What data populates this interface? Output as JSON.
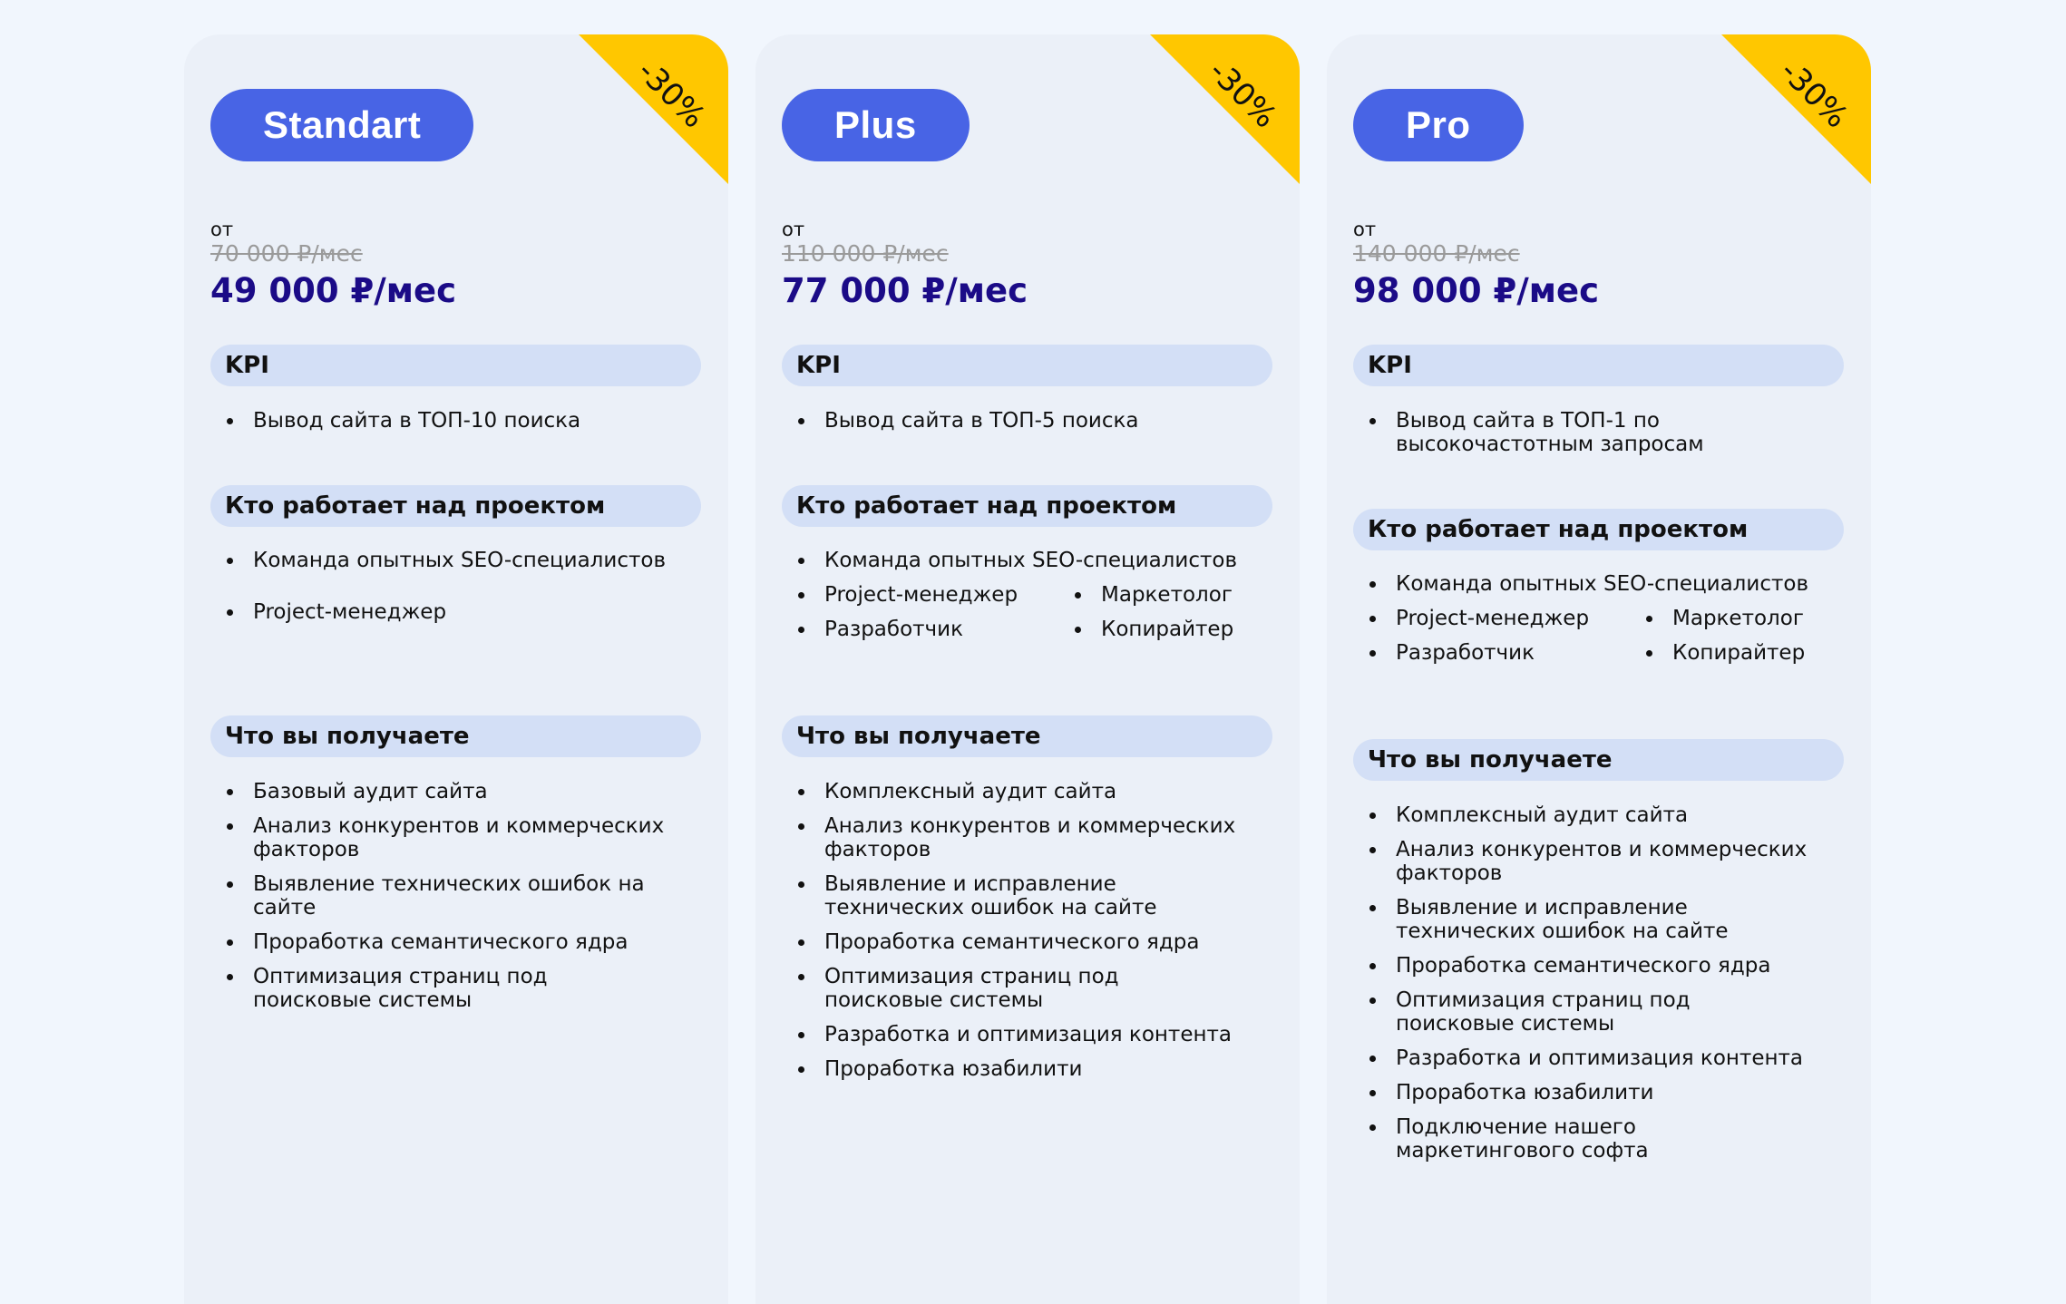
{
  "colors": {
    "background": "#f1f6fd",
    "card": "#ebf0f8",
    "plan_pill": "#4864e5",
    "section_bar": "#d3dff6",
    "price": "#1b0b87",
    "discount_ribbon": "#ffc700",
    "old_price": "#9a9a9a"
  },
  "plans": [
    {
      "name": "Standart",
      "discount": "-30%",
      "from": "от",
      "old_price": "70 000 ₽/мес",
      "price": "49 000 ₽/мес",
      "kpi_title": "KPI",
      "kpi": [
        "Вывод сайта в ТОП-10 поиска"
      ],
      "team_title": "Кто работает над проектом",
      "team": [
        "Команда опытных SEO-специалистов",
        "Project-менеджер"
      ],
      "get_title": "Что вы получаете",
      "get": [
        "Базовый аудит сайта",
        "Анализ конкурентов и коммерческих факторов",
        "Выявление технических ошибок на сайте",
        "Проработка семантического ядра",
        "Оптимизация страниц под поисковые системы"
      ]
    },
    {
      "name": "Plus",
      "discount": "-30%",
      "from": "от",
      "old_price": "110 000 ₽/мес",
      "price": "77 000 ₽/мес",
      "kpi_title": "KPI",
      "kpi": [
        "Вывод сайта в ТОП-5 поиска"
      ],
      "team_title": "Кто работает над проектом",
      "team": [
        "Команда опытных SEO-специалистов",
        "Project-менеджер",
        "Маркетолог",
        "Разработчик",
        "Копирайтер"
      ],
      "get_title": "Что вы получаете",
      "get": [
        "Комплексный аудит сайта",
        "Анализ конкурентов и коммерческих факторов",
        "Выявление и исправление технических ошибок на сайте",
        "Проработка семантического ядра",
        "Оптимизация страниц под поисковые системы",
        "Разработка и оптимизация контента",
        "Проработка юзабилити"
      ]
    },
    {
      "name": "Pro",
      "discount": "-30%",
      "from": "от",
      "old_price": "140 000 ₽/мес",
      "price": "98 000 ₽/мес",
      "kpi_title": "KPI",
      "kpi": [
        "Вывод сайта в ТОП-1 по высокочастотным запросам"
      ],
      "team_title": "Кто работает над проектом",
      "team": [
        "Команда опытных SEO-специалистов",
        "Project-менеджер",
        "Маркетолог",
        "Разработчик",
        "Копирайтер"
      ],
      "get_title": "Что вы получаете",
      "get": [
        "Комплексный аудит сайта",
        "Анализ конкурентов и коммерческих факторов",
        "Выявление и исправление технических ошибок на сайте",
        "Проработка семантического ядра",
        "Оптимизация страниц под поисковые системы",
        "Разработка и оптимизация контента",
        "Проработка юзабилити",
        "Подключение нашего маркетингового софта"
      ]
    }
  ]
}
